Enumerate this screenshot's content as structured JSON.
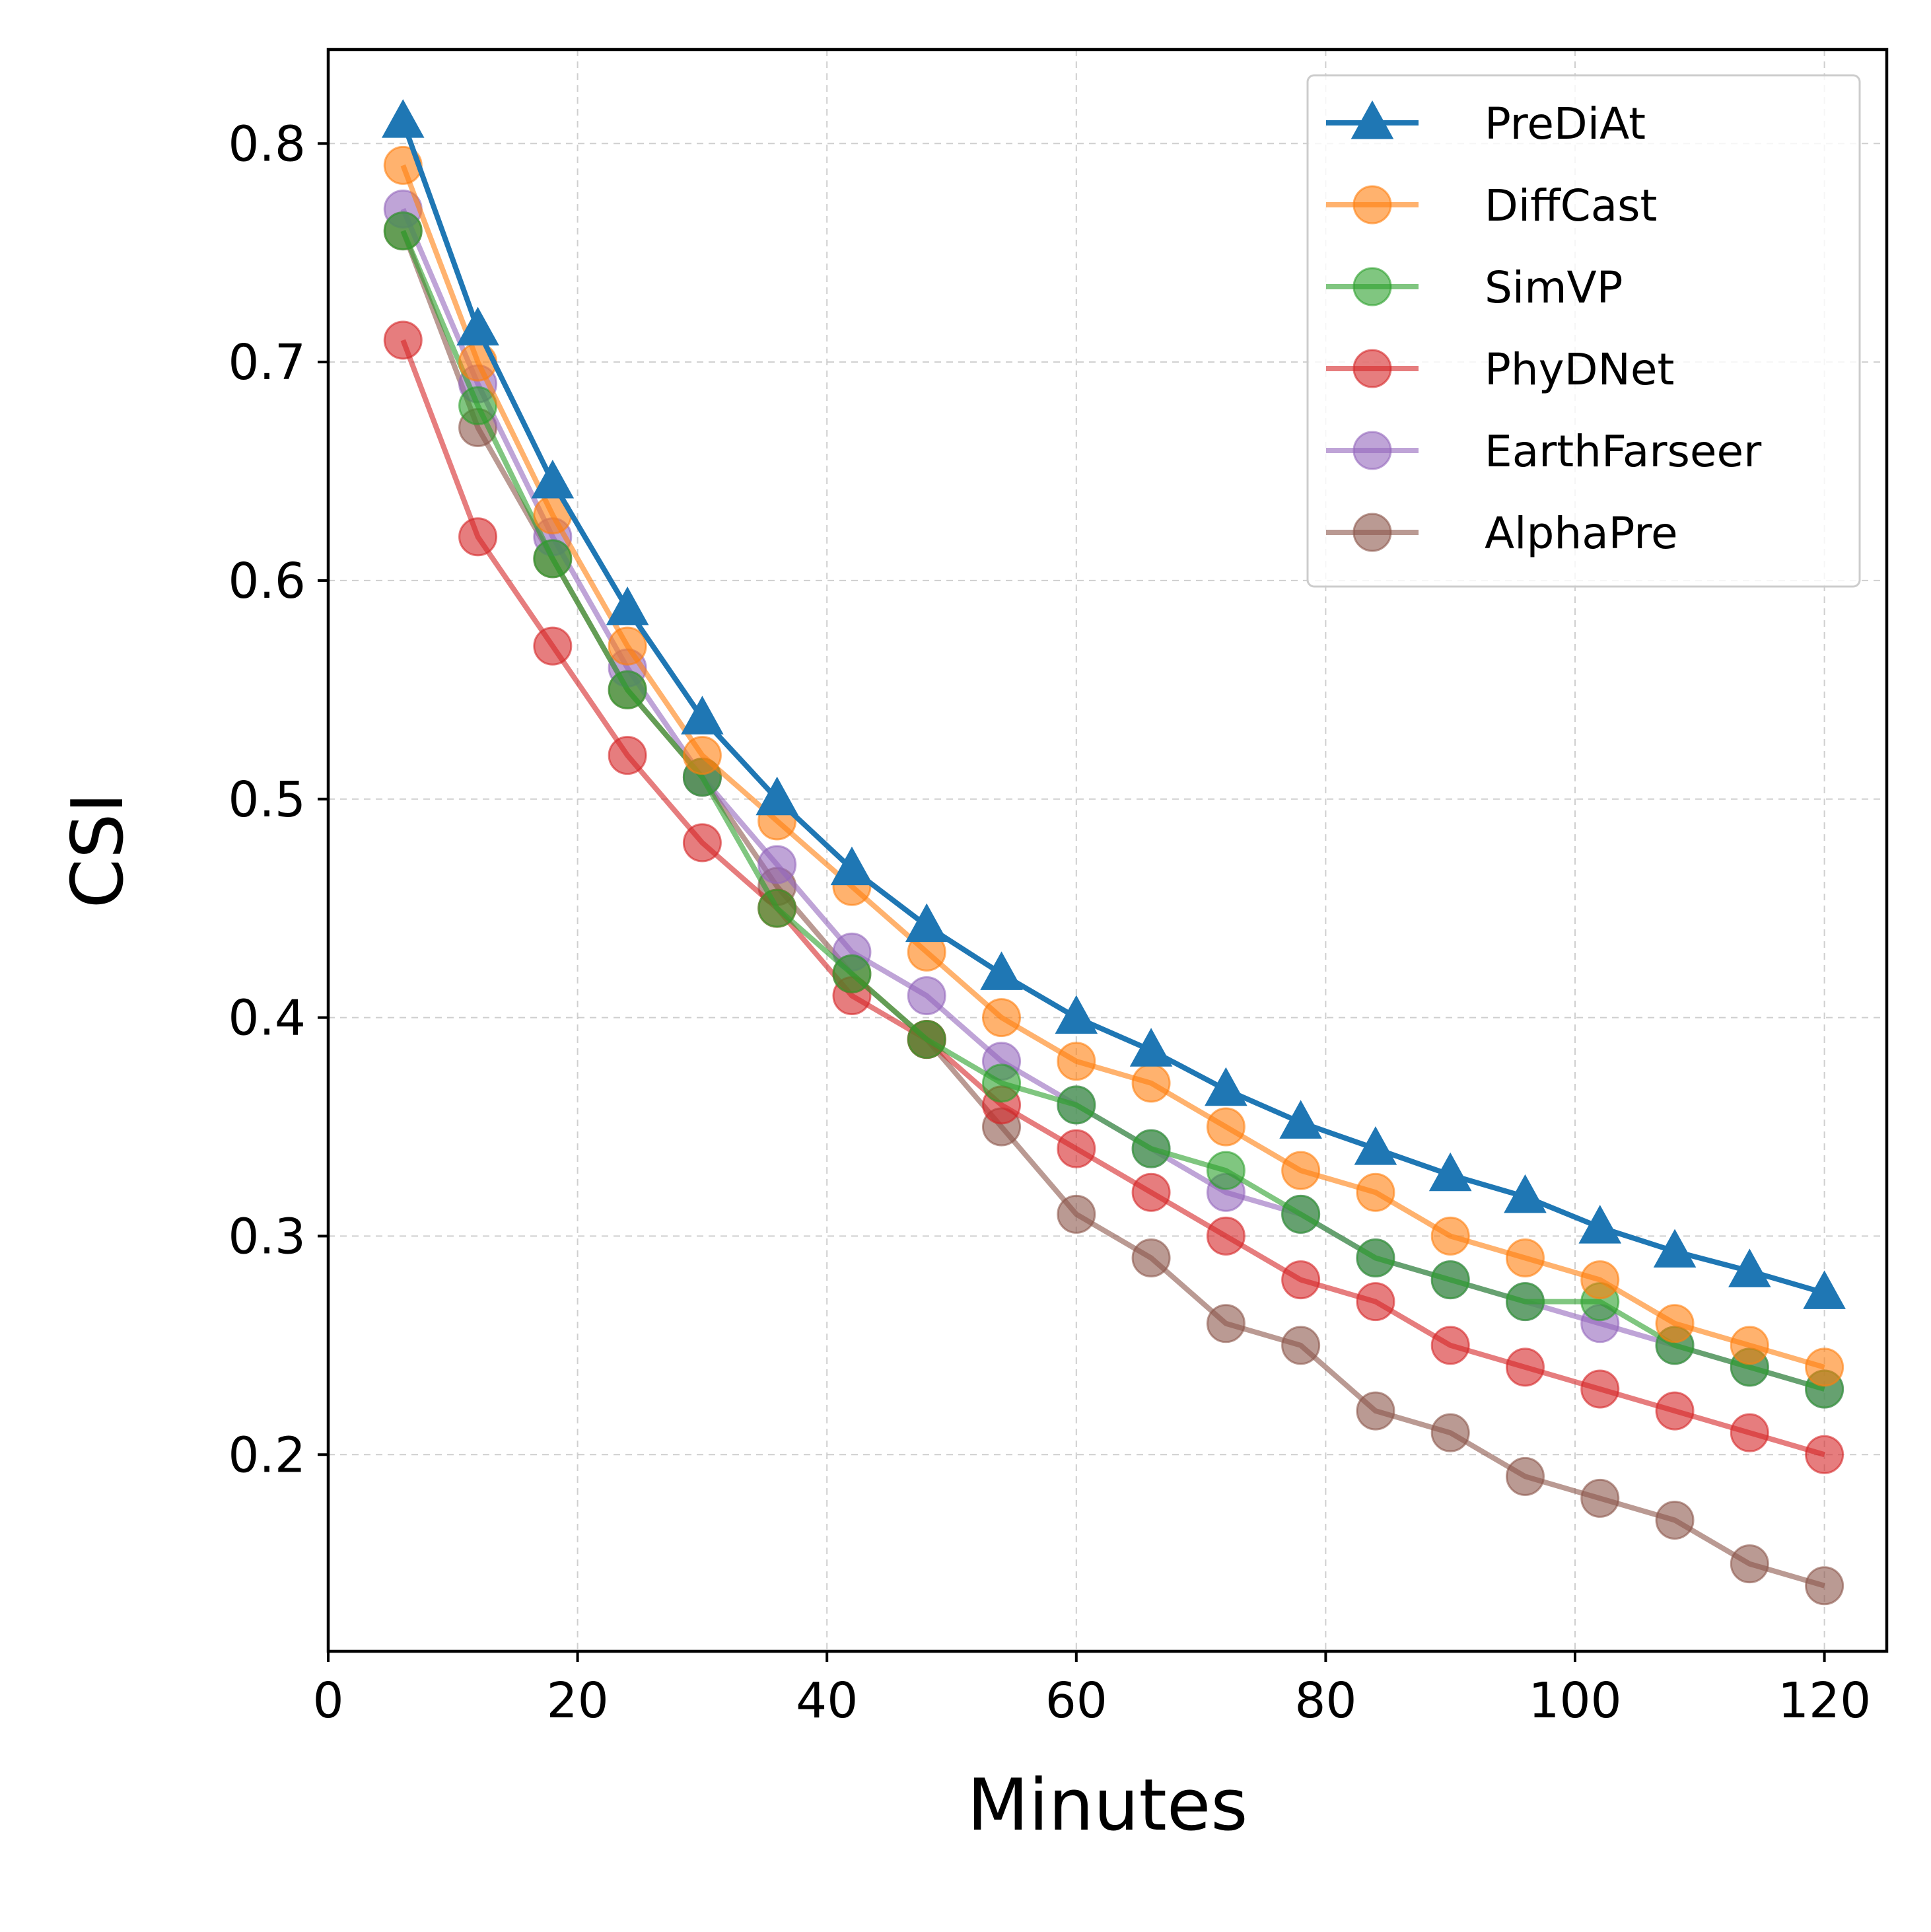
{
  "chart_data": {
    "type": "line",
    "title": "",
    "xlabel": "Minutes",
    "ylabel": "CSI",
    "xlim": [
      0,
      125
    ],
    "ylim": [
      0.11,
      0.843
    ],
    "xticks": [
      0,
      20,
      40,
      60,
      80,
      100,
      120
    ],
    "xtick_labels": [
      "0",
      "20",
      "40",
      "60",
      "80",
      "100",
      "120"
    ],
    "yticks": [
      0.2,
      0.3,
      0.4,
      0.5,
      0.6,
      0.7,
      0.8
    ],
    "ytick_labels": [
      "0.2",
      "0.3",
      "0.4",
      "0.5",
      "0.6",
      "0.7",
      "0.8"
    ],
    "grid": true,
    "legend_position": "top-right",
    "x": [
      6,
      12,
      18,
      24,
      30,
      36,
      42,
      48,
      54,
      60,
      66,
      72,
      78,
      84,
      90,
      96,
      102,
      108,
      114,
      120
    ],
    "series": [
      {
        "name": "PreDiAt",
        "color": "#1f77b4",
        "marker": "triangle",
        "alpha": 1.0,
        "values": [
          0.81,
          0.715,
          0.645,
          0.587,
          0.537,
          0.5,
          0.468,
          0.442,
          0.42,
          0.4,
          0.385,
          0.367,
          0.352,
          0.34,
          0.328,
          0.318,
          0.304,
          0.293,
          0.284,
          0.274
        ]
      },
      {
        "name": "DiffCast",
        "color": "#ff7f0e",
        "marker": "circle",
        "alpha": 0.6,
        "values": [
          0.79,
          0.7,
          0.63,
          0.57,
          0.52,
          0.49,
          0.46,
          0.43,
          0.4,
          0.38,
          0.37,
          0.35,
          0.33,
          0.32,
          0.3,
          0.29,
          0.28,
          0.26,
          0.25,
          0.24
        ]
      },
      {
        "name": "SimVP",
        "color": "#2ca02c",
        "marker": "circle",
        "alpha": 0.6,
        "values": [
          0.76,
          0.68,
          0.61,
          0.55,
          0.51,
          0.45,
          0.42,
          0.39,
          0.37,
          0.36,
          0.34,
          0.33,
          0.31,
          0.29,
          0.28,
          0.27,
          0.27,
          0.25,
          0.24,
          0.23
        ]
      },
      {
        "name": "PhyDNet",
        "color": "#d62728",
        "marker": "circle",
        "alpha": 0.6,
        "values": [
          0.71,
          0.62,
          0.57,
          0.52,
          0.48,
          0.45,
          0.41,
          0.39,
          0.36,
          0.34,
          0.32,
          0.3,
          0.28,
          0.27,
          0.25,
          0.24,
          0.23,
          0.22,
          0.21,
          0.2
        ]
      },
      {
        "name": "EarthFarseer",
        "color": "#9467bd",
        "marker": "circle",
        "alpha": 0.6,
        "values": [
          0.77,
          0.69,
          0.62,
          0.56,
          0.51,
          0.47,
          0.43,
          0.41,
          0.38,
          0.36,
          0.34,
          0.32,
          0.31,
          0.29,
          0.28,
          0.27,
          0.26,
          0.25,
          0.24,
          0.23
        ]
      },
      {
        "name": "AlphaPre",
        "color": "#8c564b",
        "marker": "circle",
        "alpha": 0.6,
        "values": [
          0.76,
          0.67,
          0.61,
          0.55,
          0.51,
          0.46,
          0.42,
          0.39,
          0.35,
          0.31,
          0.29,
          0.26,
          0.25,
          0.22,
          0.21,
          0.19,
          0.18,
          0.17,
          0.15,
          0.14
        ]
      }
    ]
  }
}
